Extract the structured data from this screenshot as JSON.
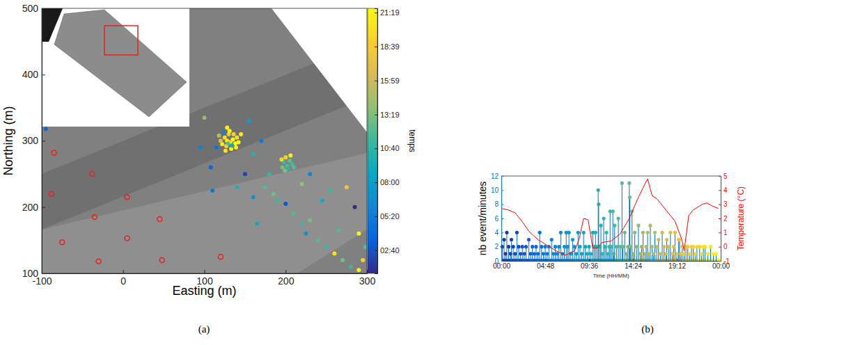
{
  "chart_data": [
    {
      "type": "scatter",
      "caption": "(a)",
      "x_label": "Easting (m)",
      "y_label": "Northing (m)",
      "xlim": [
        -100,
        300
      ],
      "xticks": [
        -100,
        0,
        100,
        200,
        300
      ],
      "ylim": [
        100,
        500
      ],
      "yticks": [
        100,
        200,
        300,
        400,
        500
      ],
      "colorbar": {
        "label": "temps",
        "range": [
          0.86,
          21.65
        ],
        "ticks": [
          {
            "value": 2.667,
            "label": "02:40"
          },
          {
            "value": 5.333,
            "label": "05:20"
          },
          {
            "value": 8,
            "label": "08:00"
          },
          {
            "value": 10.667,
            "label": "10:40"
          },
          {
            "value": 13.317,
            "label": "13:19"
          },
          {
            "value": 15.983,
            "label": "15:59"
          },
          {
            "value": 18.65,
            "label": "18:39"
          },
          {
            "value": 21.317,
            "label": "21:19"
          }
        ]
      },
      "series": [
        {
          "marker": "circle",
          "x": [
            125,
            128,
            132,
            135,
            130,
            122,
            138,
            127,
            133,
            140,
            120,
            131,
            136,
            126,
            142,
            118,
            129,
            134,
            124,
            139,
            115,
            145,
            128,
            198,
            202,
            205,
            196,
            200,
            208,
            195,
            203,
            210,
            199,
            206,
            100,
            95,
            108,
            155,
            160,
            170,
            180,
            175,
            185,
            190,
            200,
            210,
            220,
            230,
            225,
            240,
            250,
            260,
            270,
            280,
            290,
            295,
            265,
            245,
            255,
            220,
            230,
            150,
            160,
            140,
            -95,
            285,
            275,
            290,
            298,
            110,
            165
          ],
          "values": [
            305,
            300,
            298,
            302,
            310,
            295,
            296,
            292,
            288,
            305,
            300,
            315,
            310,
            285,
            298,
            308,
            296,
            293,
            312,
            290,
            290,
            310,
            320,
            268,
            262,
            270,
            260,
            275,
            265,
            272,
            258,
            260,
            255,
            278,
            335,
            290,
            260,
            330,
            280,
            300,
            250,
            230,
            220,
            210,
            205,
            190,
            175,
            180,
            160,
            150,
            140,
            130,
            120,
            110,
            105,
            120,
            165,
            210,
            225,
            235,
            250,
            250,
            215,
            230,
            318,
            200,
            230,
            160,
            140,
            225,
            175
          ],
          "time": [
            20,
            21,
            19.5,
            21.5,
            18.5,
            20.5,
            21.5,
            19,
            21.2,
            20,
            17,
            21,
            19,
            20,
            21.4,
            15,
            12,
            9,
            6,
            21,
            5,
            20.5,
            21.3,
            11,
            12,
            12.5,
            13,
            19,
            11.5,
            20,
            10.5,
            12,
            13.5,
            21,
            14,
            6,
            4,
            8,
            10,
            5,
            11,
            12,
            13,
            11,
            3,
            12,
            11,
            13,
            7,
            12,
            11,
            20,
            13,
            11,
            21,
            19,
            12,
            9,
            11,
            14,
            6,
            2,
            7,
            10,
            4,
            1,
            18,
            21.5,
            12,
            5,
            9
          ]
        },
        {
          "marker": "circle-open",
          "color": "#e8211b",
          "x": [
            -85,
            -38,
            -88,
            5,
            -35,
            45,
            -75,
            5,
            -30,
            48,
            120
          ],
          "values": [
            282,
            250,
            220,
            215,
            185,
            182,
            147,
            153,
            118,
            120,
            125
          ]
        }
      ]
    },
    {
      "type": "stem",
      "caption": "(b)",
      "x_label": "Time (HH/MM)",
      "y_label": "nb event/minutes",
      "y2_label": "Temperature (°C)",
      "xlim": [
        0,
        24
      ],
      "xticks": [
        {
          "value": 0,
          "label": "00:00"
        },
        {
          "value": 4.8,
          "label": "04:48"
        },
        {
          "value": 9.6,
          "label": "09:36"
        },
        {
          "value": 14.4,
          "label": "14:24"
        },
        {
          "value": 19.2,
          "label": "19:12"
        },
        {
          "value": 24,
          "label": "00:00"
        }
      ],
      "ylim": [
        0,
        12
      ],
      "yticks": [
        0,
        2,
        4,
        6,
        8,
        10,
        12
      ],
      "y2lim": [
        -1,
        5
      ],
      "y2ticks": [
        -1,
        0,
        1,
        2,
        3,
        4,
        5
      ],
      "series": [
        {
          "type": "stem",
          "color": "#0072bd",
          "marker": "circle",
          "x": [
            0.1,
            0.3,
            0.45,
            0.6,
            0.8,
            1.0,
            1.1,
            1.3,
            1.5,
            1.7,
            1.9,
            2.1,
            2.3,
            2.5,
            2.7,
            3.0,
            3.2,
            3.4,
            3.6,
            3.8,
            4.0,
            4.2,
            4.4,
            4.6,
            4.8,
            5.0,
            5.2,
            5.5,
            5.7,
            5.9,
            6.1,
            6.3,
            6.5,
            6.7,
            6.9,
            7.1,
            7.25,
            7.4,
            7.6,
            7.8,
            8.0,
            8.2,
            8.4,
            8.6,
            8.8,
            9.0,
            9.2,
            9.4,
            9.6,
            9.8,
            10.0,
            10.15,
            10.3,
            10.45,
            10.6,
            10.65,
            10.8,
            10.9,
            11.05,
            11.2,
            11.35,
            11.5,
            11.65,
            11.8,
            11.9,
            12.05,
            12.2,
            12.3,
            12.4,
            12.6,
            12.8,
            13.0,
            13.2,
            13.3,
            13.5,
            13.7,
            13.85,
            14.0,
            14.05,
            14.15,
            14.3,
            14.45,
            14.6,
            14.8,
            15.0,
            15.2,
            15.35,
            15.5,
            15.7,
            15.85,
            16.0,
            16.15,
            16.3,
            16.5,
            16.65,
            16.8,
            17.0,
            17.2,
            17.4,
            17.6,
            17.8,
            18.0,
            18.1,
            18.3,
            18.5,
            18.7,
            18.85,
            19.0,
            19.2,
            19.4,
            19.5,
            19.65,
            19.8,
            20.0,
            20.2,
            20.4,
            20.6,
            20.8,
            21.0,
            21.2,
            21.4,
            21.7,
            21.9,
            22.1,
            22.3,
            22.6,
            22.9,
            23.2,
            23.5
          ],
          "values": [
            2,
            3,
            1,
            4,
            2,
            1,
            3,
            2,
            1,
            4,
            2,
            1,
            2,
            1,
            2,
            3,
            1,
            2,
            1,
            2,
            1,
            4,
            2,
            1,
            2,
            1,
            2,
            3,
            1,
            2,
            1,
            2,
            4,
            1,
            2,
            4,
            2,
            4,
            1,
            3,
            2,
            1,
            4,
            2,
            1,
            4,
            2,
            1,
            2,
            1,
            4,
            2,
            4,
            2,
            10,
            8,
            2,
            5,
            1,
            6,
            2,
            4,
            1,
            2,
            7,
            2,
            7,
            1,
            5,
            2,
            6,
            2,
            11,
            2,
            4,
            1,
            2,
            11,
            9,
            2,
            7,
            1,
            4,
            2,
            5,
            1,
            2,
            4,
            1,
            2,
            4,
            1,
            5,
            2,
            1,
            4,
            2,
            3,
            1,
            4,
            2,
            1,
            3,
            2,
            4,
            1,
            2,
            4,
            1,
            3,
            3,
            1,
            2,
            1,
            2,
            2,
            1,
            2,
            2,
            1,
            2,
            2,
            1,
            2,
            2,
            1,
            2,
            1,
            1
          ]
        },
        {
          "type": "line",
          "color": "#ff0000",
          "axis": "y2",
          "x": [
            0,
            0.75,
            1.5,
            2.25,
            3,
            4,
            5,
            6,
            7,
            8,
            8.5,
            9,
            9.5,
            10,
            10.5,
            11,
            12,
            13,
            14,
            15,
            16,
            16.5,
            17,
            18,
            19,
            19.75,
            20,
            20.5,
            21,
            22,
            22.5,
            23,
            23.75
          ],
          "values": [
            2.7,
            2.6,
            2.4,
            1.8,
            1.1,
            0.5,
            0.1,
            -0.3,
            -0.6,
            -0.3,
            0.5,
            2.0,
            1.9,
            -0.1,
            -0.1,
            0.3,
            0.4,
            0.9,
            2.0,
            3.5,
            4.8,
            3.6,
            3.4,
            2.6,
            1.8,
            0.5,
            -0.3,
            2.2,
            2.6,
            3.0,
            3.1,
            2.9,
            2.7
          ]
        }
      ]
    }
  ]
}
